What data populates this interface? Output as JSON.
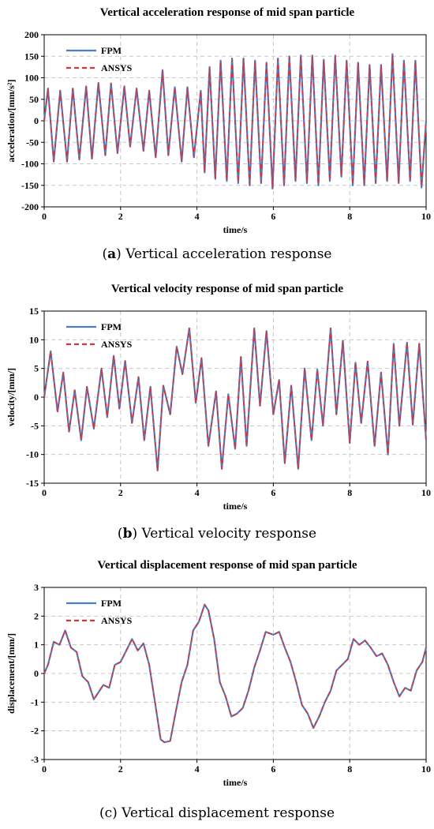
{
  "colors": {
    "fpm": "#4a7ec4",
    "ansys": "#d9343a",
    "grid": "#c8c8c8"
  },
  "panels": [
    {
      "caption_prefix": "(",
      "caption_letter": "a",
      "caption_suffix": ") Vertical acceleration response",
      "chart_data": {
        "type": "line",
        "title": "Vertical acceleration response of mid span particle",
        "xlabel": "time/s",
        "ylabel": "acceleration/[mm/s²]",
        "xlim": [
          0,
          10
        ],
        "ylim": [
          -200,
          200
        ],
        "xticks": [
          0,
          2,
          4,
          6,
          8,
          10
        ],
        "yticks": [
          -200,
          -150,
          -100,
          -50,
          0,
          50,
          100,
          150,
          200
        ],
        "grid": true,
        "legend_position": "top-left",
        "series": [
          {
            "name": "FPM",
            "style": "solid",
            "color": "#4a7ec4",
            "x": [
              0,
              0.1,
              0.25,
              0.42,
              0.6,
              0.75,
              0.92,
              1.1,
              1.25,
              1.42,
              1.6,
              1.75,
              1.92,
              2.1,
              2.25,
              2.42,
              2.6,
              2.75,
              2.92,
              3.1,
              3.25,
              3.42,
              3.6,
              3.75,
              3.92,
              4.1,
              4.2,
              4.33,
              4.48,
              4.62,
              4.78,
              4.92,
              5.08,
              5.22,
              5.38,
              5.52,
              5.68,
              5.82,
              5.98,
              6.12,
              6.28,
              6.42,
              6.58,
              6.72,
              6.88,
              7.02,
              7.18,
              7.32,
              7.48,
              7.62,
              7.78,
              7.92,
              8.08,
              8.22,
              8.38,
              8.52,
              8.68,
              8.82,
              8.98,
              9.12,
              9.28,
              9.42,
              9.58,
              9.72,
              9.88,
              10
            ],
            "y": [
              0,
              75,
              -95,
              70,
              -95,
              75,
              -90,
              80,
              -88,
              88,
              -80,
              87,
              -75,
              80,
              -60,
              75,
              -70,
              70,
              -85,
              118,
              -80,
              78,
              -95,
              78,
              -85,
              70,
              -120,
              125,
              -135,
              140,
              -140,
              145,
              -145,
              145,
              -150,
              140,
              -145,
              135,
              -158,
              145,
              -150,
              150,
              -140,
              152,
              -145,
              152,
              -150,
              142,
              -140,
              152,
              -130,
              140,
              -150,
              135,
              -150,
              130,
              -145,
              130,
              -140,
              155,
              -145,
              140,
              -140,
              140,
              -155,
              0
            ]
          },
          {
            "name": "ANSYS",
            "style": "dashed",
            "color": "#d9343a",
            "x": [
              0,
              0.1,
              0.25,
              0.42,
              0.6,
              0.75,
              0.92,
              1.1,
              1.25,
              1.42,
              1.6,
              1.75,
              1.92,
              2.1,
              2.25,
              2.42,
              2.6,
              2.75,
              2.92,
              3.1,
              3.25,
              3.42,
              3.6,
              3.75,
              3.92,
              4.1,
              4.2,
              4.33,
              4.48,
              4.62,
              4.78,
              4.92,
              5.08,
              5.22,
              5.38,
              5.52,
              5.68,
              5.82,
              5.98,
              6.12,
              6.28,
              6.42,
              6.58,
              6.72,
              6.88,
              7.02,
              7.18,
              7.32,
              7.48,
              7.62,
              7.78,
              7.92,
              8.08,
              8.22,
              8.38,
              8.52,
              8.68,
              8.82,
              8.98,
              9.12,
              9.28,
              9.42,
              9.58,
              9.72,
              9.88,
              10
            ],
            "y": [
              0,
              74,
              -94,
              70,
              -94,
              74,
              -89,
              79,
              -87,
              87,
              -80,
              86,
              -75,
              79,
              -60,
              74,
              -70,
              70,
              -84,
              116,
              -80,
              77,
              -94,
              77,
              -84,
              70,
              -118,
              123,
              -133,
              138,
              -138,
              143,
              -143,
              143,
              -148,
              138,
              -143,
              133,
              -155,
              143,
              -148,
              148,
              -138,
              150,
              -143,
              150,
              -148,
              140,
              -138,
              150,
              -128,
              138,
              -148,
              133,
              -148,
              128,
              -143,
              128,
              -138,
              152,
              -143,
              138,
              -138,
              138,
              -152,
              0
            ]
          }
        ]
      }
    },
    {
      "caption_prefix": "(",
      "caption_letter": "b",
      "caption_suffix": ") Vertical velocity response",
      "chart_data": {
        "type": "line",
        "title": "Vertical velocity response of mid span particle",
        "xlabel": "time/s",
        "ylabel": "velocity/[mm/]",
        "xlim": [
          0,
          10
        ],
        "ylim": [
          -15,
          15
        ],
        "xticks": [
          0,
          2,
          4,
          6,
          8,
          10
        ],
        "yticks": [
          -15,
          -10,
          -5,
          0,
          5,
          10,
          15
        ],
        "grid": true,
        "legend_position": "top-left",
        "series": [
          {
            "name": "FPM",
            "style": "solid",
            "color": "#4a7ec4",
            "x": [
              0,
              0.17,
              0.35,
              0.5,
              0.65,
              0.8,
              0.97,
              1.12,
              1.3,
              1.5,
              1.65,
              1.82,
              1.97,
              2.12,
              2.3,
              2.47,
              2.62,
              2.78,
              2.97,
              3.12,
              3.3,
              3.47,
              3.62,
              3.8,
              3.97,
              4.12,
              4.3,
              4.5,
              4.65,
              4.82,
              5.0,
              5.15,
              5.3,
              5.5,
              5.65,
              5.82,
              6.0,
              6.15,
              6.3,
              6.47,
              6.65,
              6.82,
              7.0,
              7.15,
              7.3,
              7.5,
              7.65,
              7.82,
              8.0,
              8.15,
              8.3,
              8.47,
              8.65,
              8.82,
              9.0,
              9.15,
              9.3,
              9.5,
              9.65,
              9.82,
              10
            ],
            "y": [
              0,
              8,
              -2.5,
              4.3,
              -6,
              1.2,
              -7.5,
              1.8,
              -5.5,
              5,
              -3.5,
              7.2,
              -2,
              6.3,
              -4.5,
              3.5,
              -7.5,
              1.8,
              -12.8,
              2,
              -3,
              8.8,
              4,
              12,
              -1,
              6.8,
              -8.5,
              1,
              -12.5,
              0.5,
              -9,
              7,
              -8.5,
              12,
              -1.5,
              11.5,
              -3,
              3,
              -11.5,
              2,
              -12.5,
              5,
              -7.5,
              4.8,
              -5,
              12,
              -3,
              9.8,
              -8,
              6,
              -4.5,
              6.2,
              -8.5,
              4.3,
              -10,
              9.3,
              -5,
              9.5,
              -4.8,
              9.3,
              -7.5
            ]
          },
          {
            "name": "ANSYS",
            "style": "dashed",
            "color": "#d9343a",
            "x": [
              0,
              0.17,
              0.35,
              0.5,
              0.65,
              0.8,
              0.97,
              1.12,
              1.3,
              1.5,
              1.65,
              1.82,
              1.97,
              2.12,
              2.3,
              2.47,
              2.62,
              2.78,
              2.97,
              3.12,
              3.3,
              3.47,
              3.62,
              3.8,
              3.97,
              4.12,
              4.3,
              4.5,
              4.65,
              4.82,
              5.0,
              5.15,
              5.3,
              5.5,
              5.65,
              5.82,
              6.0,
              6.15,
              6.3,
              6.47,
              6.65,
              6.82,
              7.0,
              7.15,
              7.3,
              7.5,
              7.65,
              7.82,
              8.0,
              8.15,
              8.3,
              8.47,
              8.65,
              8.82,
              9.0,
              9.15,
              9.3,
              9.5,
              9.65,
              9.82,
              10
            ],
            "y": [
              0,
              8,
              -2.5,
              4.3,
              -6,
              1.2,
              -7.5,
              1.8,
              -5.5,
              5,
              -3.5,
              7.2,
              -2,
              6.3,
              -4.5,
              3.5,
              -7.5,
              1.8,
              -12.8,
              2,
              -3,
              8.8,
              4,
              12,
              -1,
              6.8,
              -8.5,
              1,
              -12.5,
              0.5,
              -9,
              7,
              -8.5,
              12,
              -1.5,
              11.5,
              -3,
              3,
              -11.5,
              2,
              -12.5,
              5,
              -7.5,
              4.8,
              -5,
              12,
              -3,
              9.8,
              -8,
              6,
              -4.5,
              6.2,
              -8.5,
              4.3,
              -10,
              9.3,
              -5,
              9.5,
              -4.8,
              9.3,
              -7.5
            ]
          }
        ]
      }
    },
    {
      "caption_prefix": "(",
      "caption_letter": "c",
      "caption_suffix": ") Vertical displacement response",
      "caption_bold_letter": false,
      "chart_data": {
        "type": "line",
        "title": "Vertical displacement response of mid span particle",
        "xlabel": "time/s",
        "ylabel": "displacement/[mm/]",
        "xlim": [
          0,
          10
        ],
        "ylim": [
          -3,
          3
        ],
        "xticks": [
          0,
          2,
          4,
          6,
          8,
          10
        ],
        "yticks": [
          -3,
          -2,
          -1,
          0,
          1,
          2,
          3
        ],
        "grid": true,
        "legend_position": "top-left",
        "series": [
          {
            "name": "FPM",
            "style": "solid",
            "color": "#4a7ec4",
            "x": [
              0,
              0.1,
              0.25,
              0.4,
              0.55,
              0.7,
              0.85,
              1.0,
              1.15,
              1.3,
              1.4,
              1.55,
              1.7,
              1.85,
              2.0,
              2.15,
              2.3,
              2.45,
              2.6,
              2.75,
              2.9,
              3.05,
              3.15,
              3.3,
              3.45,
              3.6,
              3.75,
              3.9,
              4.05,
              4.2,
              4.3,
              4.45,
              4.6,
              4.75,
              4.9,
              5.05,
              5.2,
              5.35,
              5.5,
              5.65,
              5.8,
              6.0,
              6.15,
              6.3,
              6.45,
              6.6,
              6.75,
              6.9,
              7.05,
              7.2,
              7.35,
              7.5,
              7.65,
              7.8,
              7.95,
              8.1,
              8.25,
              8.4,
              8.55,
              8.7,
              8.85,
              9.0,
              9.15,
              9.3,
              9.45,
              9.6,
              9.75,
              9.9,
              10
            ],
            "y": [
              0,
              0.3,
              1.1,
              1.0,
              1.5,
              0.9,
              0.75,
              -0.1,
              -0.3,
              -0.9,
              -0.7,
              -0.4,
              -0.5,
              0.3,
              0.4,
              0.8,
              1.2,
              0.8,
              1.05,
              0.3,
              -1.0,
              -2.3,
              -2.4,
              -2.35,
              -1.3,
              -0.3,
              0.3,
              1.5,
              1.8,
              2.4,
              2.2,
              1.2,
              -0.3,
              -0.8,
              -1.5,
              -1.4,
              -1.2,
              -0.6,
              0.2,
              0.8,
              1.45,
              1.35,
              1.45,
              0.9,
              0.4,
              -0.3,
              -1.1,
              -1.4,
              -1.9,
              -1.5,
              -1.0,
              -0.6,
              0.1,
              0.3,
              0.5,
              1.2,
              1.0,
              1.15,
              0.9,
              0.6,
              0.7,
              0.3,
              -0.3,
              -0.8,
              -0.5,
              -0.6,
              0.1,
              0.4,
              0.9
            ]
          },
          {
            "name": "ANSYS",
            "style": "dashed",
            "color": "#d9343a",
            "x": [
              0,
              0.1,
              0.25,
              0.4,
              0.55,
              0.7,
              0.85,
              1.0,
              1.15,
              1.3,
              1.4,
              1.55,
              1.7,
              1.85,
              2.0,
              2.15,
              2.3,
              2.45,
              2.6,
              2.75,
              2.9,
              3.05,
              3.15,
              3.3,
              3.45,
              3.6,
              3.75,
              3.9,
              4.05,
              4.2,
              4.3,
              4.45,
              4.6,
              4.75,
              4.9,
              5.05,
              5.2,
              5.35,
              5.5,
              5.65,
              5.8,
              6.0,
              6.15,
              6.3,
              6.45,
              6.6,
              6.75,
              6.9,
              7.05,
              7.2,
              7.35,
              7.5,
              7.65,
              7.8,
              7.95,
              8.1,
              8.25,
              8.4,
              8.55,
              8.7,
              8.85,
              9.0,
              9.15,
              9.3,
              9.45,
              9.6,
              9.75,
              9.9,
              10
            ],
            "y": [
              0,
              0.3,
              1.1,
              1.0,
              1.5,
              0.9,
              0.75,
              -0.1,
              -0.3,
              -0.9,
              -0.7,
              -0.4,
              -0.5,
              0.3,
              0.4,
              0.8,
              1.2,
              0.8,
              1.05,
              0.3,
              -1.0,
              -2.3,
              -2.4,
              -2.35,
              -1.3,
              -0.3,
              0.3,
              1.5,
              1.8,
              2.4,
              2.2,
              1.2,
              -0.3,
              -0.8,
              -1.5,
              -1.4,
              -1.2,
              -0.6,
              0.2,
              0.8,
              1.45,
              1.35,
              1.45,
              0.9,
              0.4,
              -0.3,
              -1.1,
              -1.4,
              -1.9,
              -1.5,
              -1.0,
              -0.6,
              0.1,
              0.3,
              0.5,
              1.2,
              1.0,
              1.15,
              0.9,
              0.6,
              0.7,
              0.3,
              -0.3,
              -0.8,
              -0.5,
              -0.6,
              0.1,
              0.4,
              0.9
            ]
          }
        ]
      }
    }
  ]
}
